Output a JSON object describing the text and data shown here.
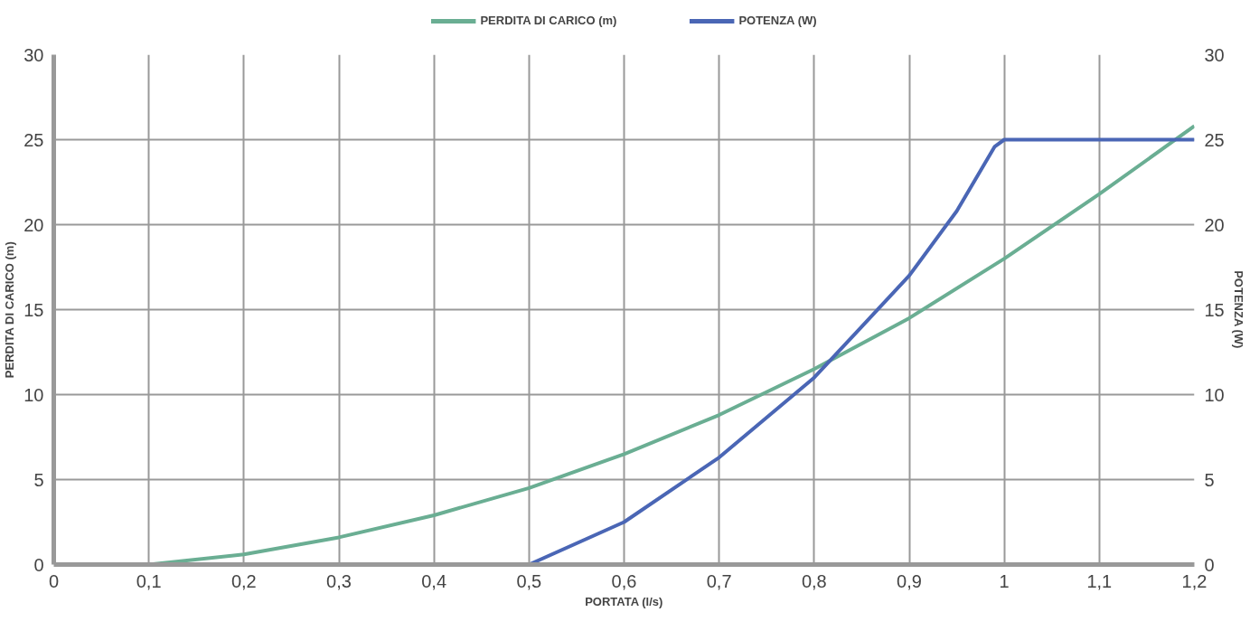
{
  "chart_data": {
    "type": "line",
    "xlabel": "PORTATA (l/s)",
    "ylabel": "PERDITA DI CARICO (m)",
    "y2label": "POTENZA (W)",
    "xlim": [
      0,
      1.2
    ],
    "xticks": [
      {
        "value": 0,
        "label": "0"
      },
      {
        "value": 0.1,
        "label": "0,1"
      },
      {
        "value": 0.2,
        "label": "0,2"
      },
      {
        "value": 0.3,
        "label": "0,3"
      },
      {
        "value": 0.4,
        "label": "0,4"
      },
      {
        "value": 0.5,
        "label": "0,5"
      },
      {
        "value": 0.6,
        "label": "0,6"
      },
      {
        "value": 0.7,
        "label": "0,7"
      },
      {
        "value": 0.8,
        "label": "0,8"
      },
      {
        "value": 0.9,
        "label": "0,9"
      },
      {
        "value": 1,
        "label": "1"
      },
      {
        "value": 1.1,
        "label": "1,1"
      },
      {
        "value": 1.2,
        "label": "1,2"
      }
    ],
    "ylim": [
      0,
      30
    ],
    "yticks": [
      0,
      5,
      10,
      15,
      20,
      25,
      30
    ],
    "y2lim": [
      0,
      30
    ],
    "y2ticks": [
      0,
      5,
      10,
      15,
      20,
      25,
      30
    ],
    "grid": true,
    "legend": "top",
    "marker": "none",
    "line_style": "solid",
    "series": [
      {
        "name": "PERDITA DI CARICO (m)",
        "color": "#6aae93",
        "x": [
          0,
          0.05,
          0.1,
          0.2,
          0.3,
          0.4,
          0.5,
          0.6,
          0.7,
          0.8,
          0.9,
          1.0,
          1.1,
          1.2
        ],
        "values": [
          0,
          0,
          0,
          0.6,
          1.6,
          2.9,
          4.5,
          6.5,
          8.8,
          11.5,
          14.5,
          18,
          21.8,
          25.8
        ]
      },
      {
        "name": "POTENZA (W)",
        "color": "#4a66b5",
        "axis": "y2",
        "x": [
          0.5,
          0.6,
          0.7,
          0.8,
          0.85,
          0.9,
          0.95,
          0.99,
          1.0,
          1.2
        ],
        "values": [
          0,
          2.5,
          6.3,
          11,
          14,
          17,
          20.8,
          24.6,
          25,
          25
        ]
      }
    ]
  }
}
